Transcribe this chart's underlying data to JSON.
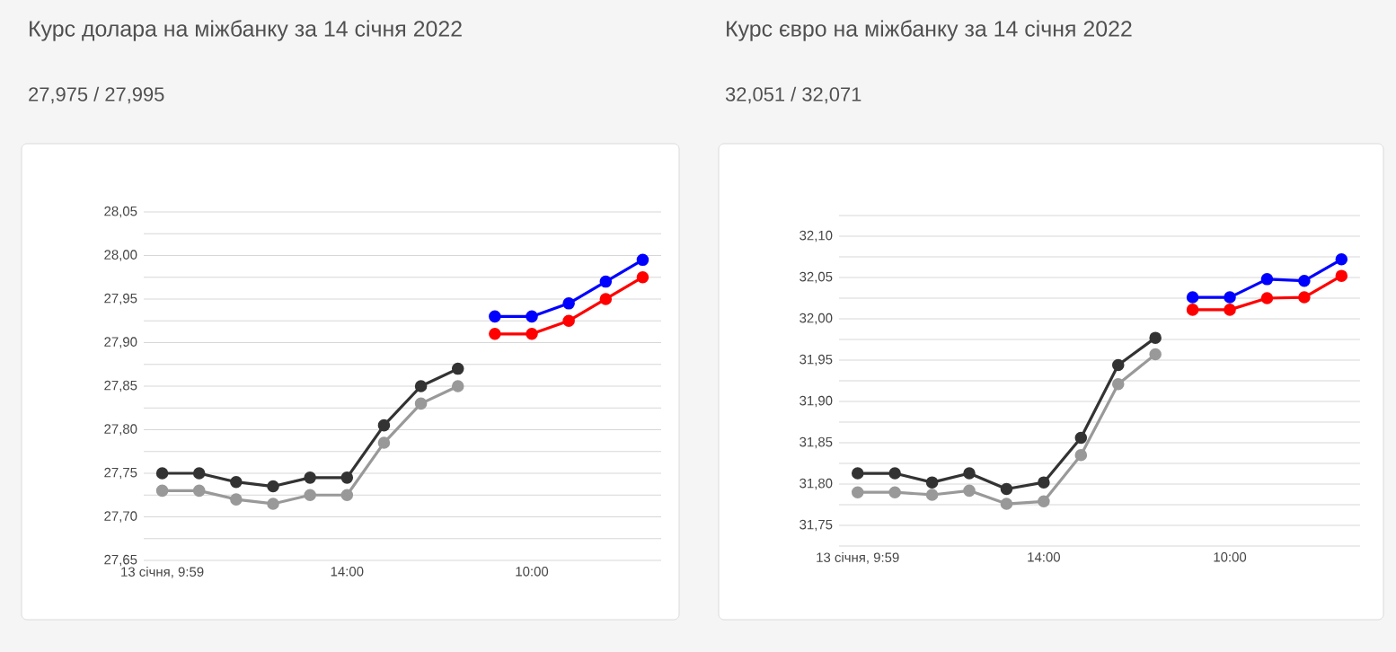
{
  "chart_data": [
    {
      "type": "line",
      "title": "Курс долара на міжбанку за 14 січня 2022",
      "subtitle": "27,975 / 27,995",
      "categories": [
        "13 січня, 9:59",
        null,
        null,
        null,
        null,
        "14:00",
        null,
        null,
        null,
        null,
        "10:00",
        null,
        null,
        null
      ],
      "series": [
        {
          "color": "#999999",
          "values": [
            27.73,
            27.73,
            27.72,
            27.715,
            27.725,
            27.725,
            27.785,
            27.83,
            27.85,
            null,
            null,
            null,
            null,
            null
          ]
        },
        {
          "color": "#333333",
          "values": [
            27.75,
            27.75,
            27.74,
            27.735,
            27.745,
            27.745,
            27.805,
            27.85,
            27.87,
            null,
            null,
            null,
            null,
            null
          ]
        },
        {
          "color": "#ff0000",
          "values": [
            null,
            null,
            null,
            null,
            null,
            null,
            null,
            null,
            null,
            27.91,
            27.91,
            27.925,
            27.95,
            27.975
          ]
        },
        {
          "color": "#0000ff",
          "values": [
            null,
            null,
            null,
            null,
            null,
            null,
            null,
            null,
            null,
            27.93,
            27.93,
            27.945,
            27.97,
            27.995
          ]
        }
      ],
      "ylim": [
        27.65,
        28.05
      ],
      "yticks": [
        {
          "value": 27.65,
          "label": "27,65"
        },
        {
          "value": 27.675,
          "label": null
        },
        {
          "value": 27.7,
          "label": "27,70"
        },
        {
          "value": 27.725,
          "label": null
        },
        {
          "value": 27.75,
          "label": "27,75"
        },
        {
          "value": 27.775,
          "label": null
        },
        {
          "value": 27.8,
          "label": "27,80"
        },
        {
          "value": 27.825,
          "label": null
        },
        {
          "value": 27.85,
          "label": "27,85"
        },
        {
          "value": 27.875,
          "label": null
        },
        {
          "value": 27.9,
          "label": "27,90"
        },
        {
          "value": 27.925,
          "label": null
        },
        {
          "value": 27.95,
          "label": "27,95"
        },
        {
          "value": 27.975,
          "label": null
        },
        {
          "value": 28.0,
          "label": "28,00"
        },
        {
          "value": 28.025,
          "label": null
        },
        {
          "value": 28.05,
          "label": "28,05"
        }
      ],
      "grid": "y",
      "marker": "circle",
      "line_style": "solid",
      "legend": false
    },
    {
      "type": "line",
      "title": "Курс євро на міжбанку за 14 січня 2022",
      "subtitle": "32,051 / 32,071",
      "categories": [
        "13 січня, 9:59",
        null,
        null,
        null,
        null,
        "14:00",
        null,
        null,
        null,
        null,
        "10:00",
        null,
        null,
        null
      ],
      "series": [
        {
          "color": "#999999",
          "values": [
            31.79,
            31.79,
            31.787,
            31.792,
            31.776,
            31.779,
            31.835,
            31.921,
            31.957,
            null,
            null,
            null,
            null,
            null
          ]
        },
        {
          "color": "#333333",
          "values": [
            31.813,
            31.813,
            31.802,
            31.813,
            31.794,
            31.802,
            31.856,
            31.944,
            31.977,
            null,
            null,
            null,
            null,
            null
          ]
        },
        {
          "color": "#ff0000",
          "values": [
            null,
            null,
            null,
            null,
            null,
            null,
            null,
            null,
            null,
            32.011,
            32.011,
            32.025,
            32.026,
            32.052
          ]
        },
        {
          "color": "#0000ff",
          "values": [
            null,
            null,
            null,
            null,
            null,
            null,
            null,
            null,
            null,
            32.026,
            32.026,
            32.048,
            32.046,
            32.072
          ]
        }
      ],
      "ylim": [
        31.725,
        32.125
      ],
      "yticks": [
        {
          "value": 31.725,
          "label": null
        },
        {
          "value": 31.75,
          "label": "31,75"
        },
        {
          "value": 31.775,
          "label": null
        },
        {
          "value": 31.8,
          "label": "31,80"
        },
        {
          "value": 31.825,
          "label": null
        },
        {
          "value": 31.85,
          "label": "31,85"
        },
        {
          "value": 31.875,
          "label": null
        },
        {
          "value": 31.9,
          "label": "31,90"
        },
        {
          "value": 31.925,
          "label": null
        },
        {
          "value": 31.95,
          "label": "31,95"
        },
        {
          "value": 31.975,
          "label": null
        },
        {
          "value": 32.0,
          "label": "32,00"
        },
        {
          "value": 32.025,
          "label": null
        },
        {
          "value": 32.05,
          "label": "32,05"
        },
        {
          "value": 32.075,
          "label": null
        },
        {
          "value": 32.1,
          "label": "32,10"
        },
        {
          "value": 32.125,
          "label": null
        }
      ],
      "grid": "y",
      "marker": "circle",
      "line_style": "solid",
      "legend": false
    }
  ]
}
